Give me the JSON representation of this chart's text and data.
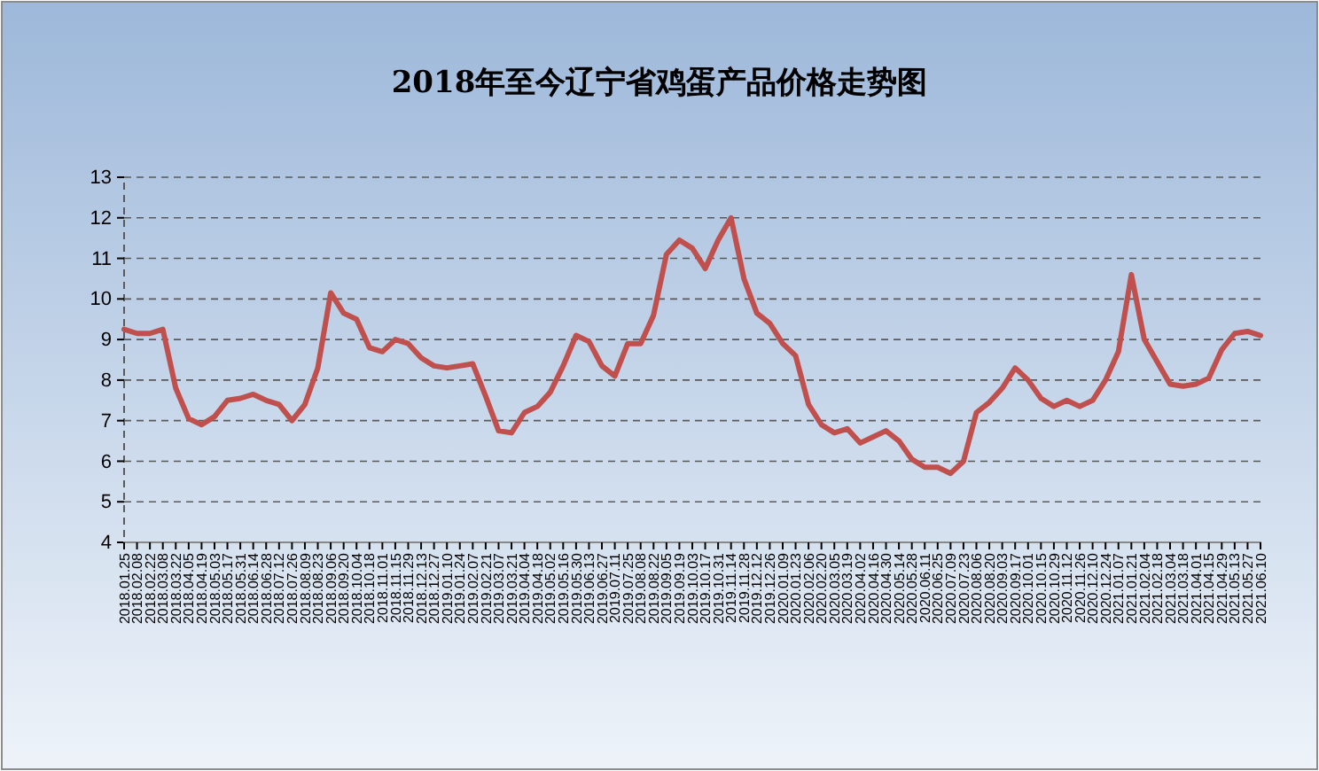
{
  "chart_data": {
    "type": "line",
    "title": "2018年至今辽宁省鸡蛋产品价格走势图",
    "categories": [
      "2018.01.25",
      "2018.02.08",
      "2018.02.22",
      "2018.03.08",
      "2018.03.22",
      "2018.04.05",
      "2018.04.19",
      "2018.05.03",
      "2018.05.17",
      "2018.05.31",
      "2018.06.14",
      "2018.06.28",
      "2018.07.12",
      "2018.07.26",
      "2018.08.09",
      "2018.08.23",
      "2018.09.06",
      "2018.09.20",
      "2018.10.04",
      "2018.10.18",
      "2018.11.01",
      "2018.11.15",
      "2018.11.29",
      "2018.12.13",
      "2018.12.27",
      "2019.01.10",
      "2019.01.24",
      "2019.02.07",
      "2019.02.21",
      "2019.03.07",
      "2019.03.21",
      "2019.04.04",
      "2019.04.18",
      "2019.05.02",
      "2019.05.16",
      "2019.05.30",
      "2019.06.13",
      "2019.06.27",
      "2019.07.11",
      "2019.07.25",
      "2019.08.08",
      "2019.08.22",
      "2019.09.05",
      "2019.09.19",
      "2019.10.03",
      "2019.10.17",
      "2019.10.31",
      "2019.11.14",
      "2019.11.28",
      "2019.12.12",
      "2019.12.26",
      "2020.01.09",
      "2020.01.23",
      "2020.02.06",
      "2020.02.20",
      "2020.03.05",
      "2020.03.19",
      "2020.04.02",
      "2020.04.16",
      "2020.04.30",
      "2020.05.14",
      "2020.05.28",
      "2020.06.11",
      "2020.06.25",
      "2020.07.09",
      "2020.07.23",
      "2020.08.06",
      "2020.08.20",
      "2020.09.03",
      "2020.09.17",
      "2020.10.01",
      "2020.10.15",
      "2020.10.29",
      "2020.11.12",
      "2020.11.26",
      "2020.12.10",
      "2020.12.24",
      "2021.01.07",
      "2021.01.21",
      "2021.02.04",
      "2021.02.18",
      "2021.03.04",
      "2021.03.18",
      "2021.04.01",
      "2021.04.15",
      "2021.04.29",
      "2021.05.13",
      "2021.05.27",
      "2021.06.10"
    ],
    "series": [
      {
        "color": "#c0504d",
        "values": [
          9.25,
          9.15,
          9.15,
          9.25,
          7.8,
          7.05,
          6.9,
          7.1,
          7.5,
          7.55,
          7.65,
          7.5,
          7.4,
          7.0,
          7.4,
          8.3,
          10.15,
          9.65,
          9.5,
          8.8,
          8.7,
          9.0,
          8.9,
          8.55,
          8.35,
          8.3,
          8.35,
          8.4,
          7.6,
          6.75,
          6.7,
          7.2,
          7.35,
          7.7,
          8.35,
          9.1,
          8.95,
          8.35,
          8.1,
          8.9,
          8.9,
          9.6,
          11.1,
          11.45,
          11.25,
          10.75,
          11.45,
          12.0,
          10.5,
          9.65,
          9.4,
          8.9,
          8.6,
          7.4,
          6.9,
          6.7,
          6.8,
          6.45,
          6.6,
          6.75,
          6.5,
          6.05,
          5.85,
          5.85,
          5.7,
          6.0,
          7.2,
          7.45,
          7.8,
          8.3,
          8.0,
          7.55,
          7.35,
          7.5,
          7.35,
          7.5,
          8.0,
          8.7,
          10.6,
          9.0,
          8.45,
          7.9,
          7.85,
          7.9,
          8.05,
          8.75,
          9.15,
          9.2,
          9.1
        ]
      }
    ],
    "ylim": [
      4,
      13
    ],
    "yticks": [
      4,
      5,
      6,
      7,
      8,
      9,
      10,
      11,
      12,
      13
    ],
    "grid": "y",
    "marker": "none",
    "line_style": "solid"
  }
}
